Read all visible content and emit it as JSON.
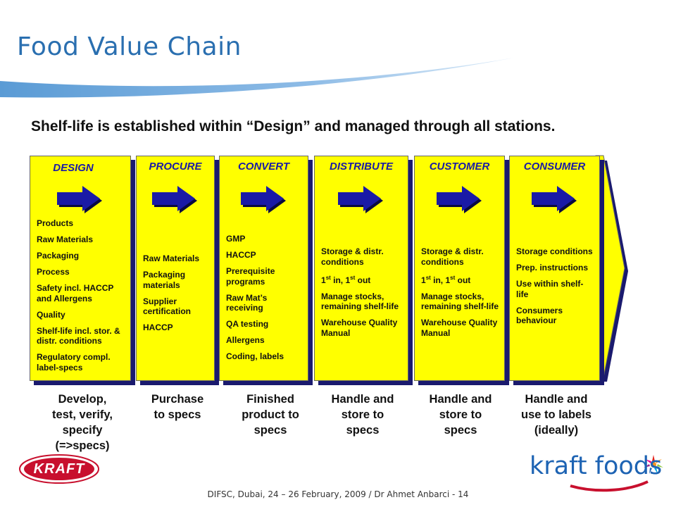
{
  "title": "Food Value Chain",
  "headline": "Shelf-life is established within “Design” and managed through all stations.",
  "colors": {
    "title": "#2a6fb0",
    "box_fill": "#ffff00",
    "box_shadow": "#1a1a6e",
    "stage_title": "#1a1aa6",
    "arrow": "#1a1aa6",
    "chain_arrow": "#ffff00",
    "kraft_red": "#c8102e",
    "kraftfoods_blue": "#1d63b3"
  },
  "stages": [
    {
      "title": "DESIGN",
      "items": [
        "Products",
        "Raw Materials",
        "Packaging",
        "Process",
        "Safety incl. HACCP and Allergens",
        "Quality",
        "Shelf-life incl. stor. & distr. conditions",
        "Regulatory compl. label-specs"
      ],
      "caption": [
        "Develop,",
        "test, verify,",
        "specify",
        "(=>specs)"
      ]
    },
    {
      "title": "PROCURE",
      "items": [
        "Raw Materials",
        "Packaging materials",
        "Supplier certification",
        "HACCP"
      ],
      "caption": [
        "Purchase",
        "to specs"
      ]
    },
    {
      "title": "CONVERT",
      "items": [
        "GMP",
        "HACCP",
        "Prerequisite programs",
        "Raw Mat’s receiving",
        "QA testing",
        "Allergens",
        "Coding, labels"
      ],
      "caption": [
        "Finished",
        "product to",
        "specs"
      ]
    },
    {
      "title": "DISTRIBUTE",
      "items": [
        "Storage & distr. conditions",
        "1st in, 1st out",
        "Manage stocks, remaining shelf-life",
        "Warehouse Quality Manual"
      ],
      "caption": [
        "Handle and",
        "store to",
        "specs"
      ]
    },
    {
      "title": "CUSTOMER",
      "items": [
        "Storage & distr. conditions",
        "1st in, 1st out",
        "Manage stocks, remaining shelf-life",
        "Warehouse Quality Manual"
      ],
      "caption": [
        "Handle and",
        "store to",
        "specs"
      ]
    },
    {
      "title": "CONSUMER",
      "items": [
        "Storage conditions",
        "Prep. instructions",
        "Use within shelf-life",
        "Consumers behaviour"
      ],
      "caption": [
        "Handle and",
        "use to labels",
        "(ideally)"
      ]
    }
  ],
  "footer": "DIFSC, Dubai, 24 – 26 February, 2009 / Dr Ahmet Anbarci  -  14",
  "logos": {
    "kraft": "KRAFT",
    "kraft_foods": "kraft foods"
  }
}
